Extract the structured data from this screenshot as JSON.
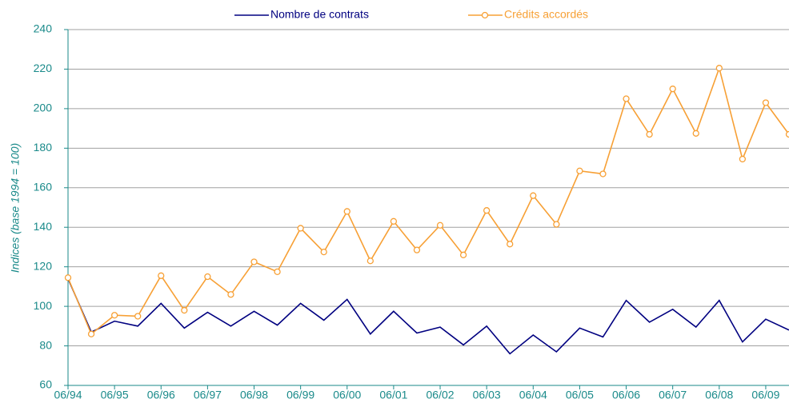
{
  "chart_data": {
    "type": "line",
    "y_label": "Indices (base 1994 = 100)",
    "categories": [
      "06/94",
      null,
      "06/95",
      null,
      "06/96",
      null,
      "06/97",
      null,
      "06/98",
      null,
      "06/99",
      null,
      "06/00",
      null,
      "06/01",
      null,
      "06/02",
      null,
      "06/03",
      null,
      "06/04",
      null,
      "06/05",
      null,
      "06/06",
      null,
      "06/07",
      null,
      "06/08",
      null,
      "06/09",
      null
    ],
    "series": [
      {
        "name": "Nombre de contrats",
        "color": "#000080",
        "marker": false,
        "values": [
          114,
          87,
          92.5,
          90,
          101.5,
          89,
          97,
          90,
          97.5,
          90.5,
          101.5,
          93,
          103.5,
          86,
          97.5,
          86.5,
          89.5,
          80.5,
          90,
          76,
          85.5,
          77,
          89,
          84.5,
          103,
          92,
          98.5,
          89.5,
          103,
          82,
          93.5,
          88
        ]
      },
      {
        "name": "Crédits accordés",
        "color": "#f7a035",
        "marker": true,
        "values": [
          114.5,
          86,
          95.5,
          95,
          115.5,
          98,
          115,
          106,
          122.5,
          117.5,
          139.5,
          127.5,
          148,
          123,
          143,
          128.5,
          141,
          126,
          148.5,
          131.5,
          156,
          141.5,
          168.5,
          167,
          205,
          187,
          210,
          187.5,
          220.5,
          174.5,
          203,
          187
        ]
      }
    ],
    "ylim": [
      60,
      240
    ],
    "yticks": [
      60,
      80,
      100,
      120,
      140,
      160,
      180,
      200,
      220,
      240
    ],
    "grid": true,
    "legend": "top"
  }
}
